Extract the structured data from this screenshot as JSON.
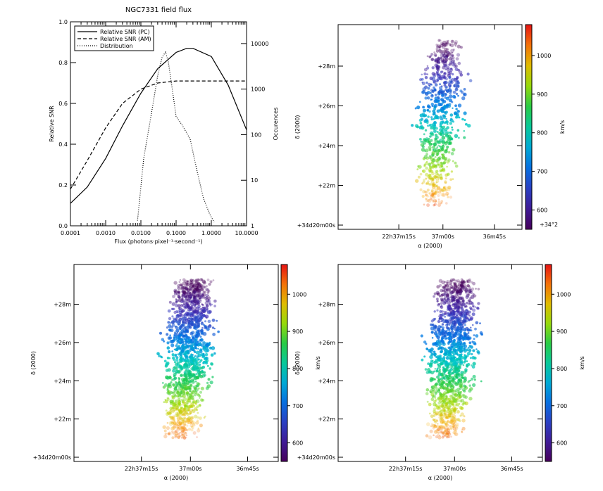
{
  "chart_data": [
    {
      "type": "line",
      "title": "NGC7331  field flux",
      "xlabel": "Flux (photons·pixel⁻¹·second⁻¹)",
      "ylabel": "Relative SNR",
      "y2label": "Occurences",
      "xscale": "log",
      "xlim": [
        0.0001,
        10
      ],
      "ylim": [
        0,
        1
      ],
      "y2scale": "log",
      "y2lim": [
        1,
        30000
      ],
      "x_ticks": [
        "0.0001",
        "0.0010",
        "0.0100",
        "0.1000",
        "1.0000",
        "10.0000"
      ],
      "x_tick_values": [
        0.0001,
        0.001,
        0.01,
        0.1,
        1,
        10
      ],
      "y_ticks": [
        "0.0",
        "0.2",
        "0.4",
        "0.6",
        "0.8",
        "1.0"
      ],
      "y_tick_values": [
        0,
        0.2,
        0.4,
        0.6,
        0.8,
        1.0
      ],
      "y2_ticks": [
        "1",
        "10",
        "100",
        "1000",
        "10000"
      ],
      "y2_tick_values": [
        1,
        10,
        100,
        1000,
        10000
      ],
      "legend": {
        "placement": "top-left",
        "entries": [
          "Relative SNR (PC)",
          "Relative SNR (AM)",
          "Distribution"
        ]
      },
      "series": [
        {
          "name": "Relative SNR (PC)",
          "style": "solid",
          "x": [
            0.0001,
            0.0003,
            0.001,
            0.003,
            0.01,
            0.03,
            0.1,
            0.2,
            0.3,
            1,
            3,
            10
          ],
          "y": [
            0.11,
            0.19,
            0.33,
            0.49,
            0.65,
            0.77,
            0.85,
            0.87,
            0.87,
            0.83,
            0.69,
            0.47
          ]
        },
        {
          "name": "Relative SNR (AM)",
          "style": "dashed",
          "x": [
            0.0001,
            0.0003,
            0.001,
            0.003,
            0.01,
            0.03,
            0.1,
            0.3,
            1,
            3,
            10
          ],
          "y": [
            0.18,
            0.32,
            0.48,
            0.6,
            0.67,
            0.7,
            0.71,
            0.71,
            0.71,
            0.71,
            0.71
          ]
        },
        {
          "name": "Distribution",
          "style": "dotted",
          "axis": "y2",
          "x": [
            0.008,
            0.012,
            0.02,
            0.03,
            0.04,
            0.05,
            0.06,
            0.075,
            0.1,
            0.15,
            0.25,
            0.4,
            0.6,
            0.9,
            1.2
          ],
          "y": [
            1.3,
            30,
            300,
            2000,
            5000,
            6500,
            4000,
            1200,
            250,
            160,
            80,
            15,
            4,
            1.8,
            1.2
          ]
        }
      ]
    },
    {
      "type": "heatmap",
      "xlabel": "α (2000)",
      "ylabel": "δ (2000)",
      "x_ticks": [
        "22h37m15s",
        "37m00s",
        "36m45s"
      ],
      "y_ticks": [
        "+34d20m00s",
        "+22m",
        "+24m",
        "+26m",
        "+28m"
      ],
      "y_tick_values_arcmin": [
        20,
        22,
        24,
        26,
        28
      ],
      "colorbar": {
        "label": "km/s",
        "ticks": [
          600,
          700,
          800,
          900,
          1000
        ],
        "range": [
          550,
          1080
        ]
      },
      "cut_label": "+34°2"
    },
    {
      "type": "heatmap",
      "xlabel": "α (2000)",
      "ylabel": "δ (2000)",
      "x_ticks": [
        "22h37m15s",
        "37m00s",
        "36m45s"
      ],
      "y_ticks": [
        "+34d20m00s",
        "+22m",
        "+24m",
        "+26m",
        "+28m"
      ],
      "y_tick_values_arcmin": [
        20,
        22,
        24,
        26,
        28
      ],
      "colorbar": {
        "label": "km/s",
        "ticks": [
          600,
          700,
          800,
          900,
          1000
        ],
        "range": [
          550,
          1080
        ]
      }
    },
    {
      "type": "heatmap",
      "xlabel": "α (2000)",
      "ylabel": "δ (2000)",
      "x_ticks": [
        "22h37m15s",
        "37m00s",
        "36m45s"
      ],
      "y_ticks": [
        "+34d20m00s",
        "+22m",
        "+24m",
        "+26m",
        "+28m"
      ],
      "y_tick_values_arcmin": [
        20,
        22,
        24,
        26,
        28
      ],
      "colorbar": {
        "label": "km/s",
        "ticks": [
          600,
          700,
          800,
          900,
          1000
        ],
        "range": [
          550,
          1080
        ]
      }
    }
  ]
}
